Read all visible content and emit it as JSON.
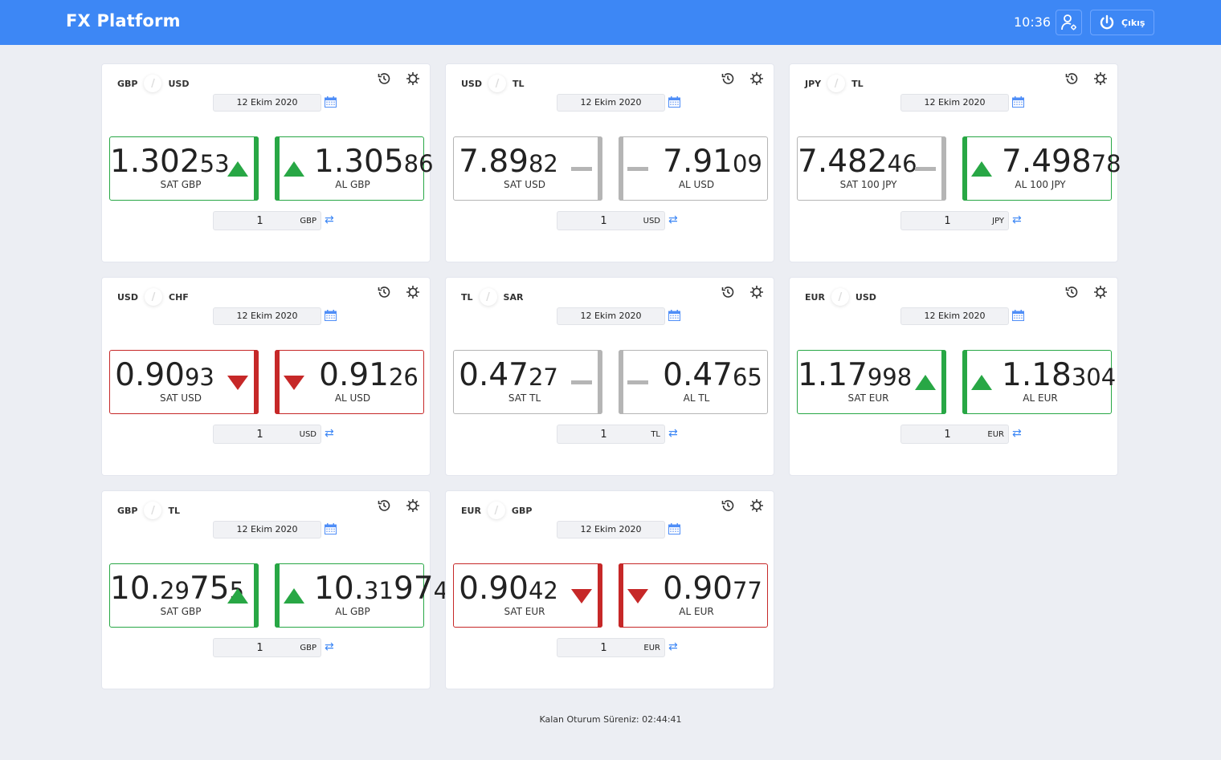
{
  "header": {
    "title": "FX Platform",
    "time": "10:36",
    "logout_label": "Çıkış"
  },
  "colors": {
    "brand": "#3d87f5",
    "up": "#28a745",
    "down": "#c62828",
    "neutral": "#b5b5b5"
  },
  "cards": [
    {
      "base": "GBP",
      "quote": "USD",
      "date": "12 Ekim 2020",
      "sell": {
        "parts": [
          [
            "1.302",
            "L"
          ],
          [
            "53",
            "S"
          ]
        ],
        "label": "SAT GBP",
        "trend": "up"
      },
      "buy": {
        "parts": [
          [
            "1.305",
            "L"
          ],
          [
            "86",
            "S"
          ]
        ],
        "label": "AL GBP",
        "trend": "up"
      },
      "amount": "1",
      "unit": "GBP"
    },
    {
      "base": "USD",
      "quote": "TL",
      "date": "12 Ekim 2020",
      "sell": {
        "parts": [
          [
            "7.89",
            "L"
          ],
          [
            "82",
            "S"
          ]
        ],
        "label": "SAT USD",
        "trend": "neutral"
      },
      "buy": {
        "parts": [
          [
            "7.91",
            "L"
          ],
          [
            "09",
            "S"
          ]
        ],
        "label": "AL USD",
        "trend": "neutral"
      },
      "amount": "1",
      "unit": "USD"
    },
    {
      "base": "JPY",
      "quote": "TL",
      "date": "12 Ekim 2020",
      "sell": {
        "parts": [
          [
            "7.482",
            "L"
          ],
          [
            "46",
            "S"
          ]
        ],
        "label": "SAT 100 JPY",
        "trend": "neutral"
      },
      "buy": {
        "parts": [
          [
            "7.498",
            "L"
          ],
          [
            "78",
            "S"
          ]
        ],
        "label": "AL 100 JPY",
        "trend": "up"
      },
      "amount": "1",
      "unit": "JPY"
    },
    {
      "base": "USD",
      "quote": "CHF",
      "date": "12 Ekim 2020",
      "sell": {
        "parts": [
          [
            "0.90",
            "L"
          ],
          [
            "93",
            "S"
          ]
        ],
        "label": "SAT USD",
        "trend": "down"
      },
      "buy": {
        "parts": [
          [
            "0.91",
            "L"
          ],
          [
            "26",
            "S"
          ]
        ],
        "label": "AL USD",
        "trend": "down"
      },
      "amount": "1",
      "unit": "USD"
    },
    {
      "base": "TL",
      "quote": "SAR",
      "date": "12 Ekim 2020",
      "sell": {
        "parts": [
          [
            "0.47",
            "L"
          ],
          [
            "27",
            "S"
          ]
        ],
        "label": "SAT TL",
        "trend": "neutral"
      },
      "buy": {
        "parts": [
          [
            "0.47",
            "L"
          ],
          [
            "65",
            "S"
          ]
        ],
        "label": "AL TL",
        "trend": "neutral"
      },
      "amount": "1",
      "unit": "TL"
    },
    {
      "base": "EUR",
      "quote": "USD",
      "date": "12 Ekim 2020",
      "sell": {
        "parts": [
          [
            "1.17",
            "L"
          ],
          [
            "998",
            "S"
          ]
        ],
        "label": "SAT EUR",
        "trend": "up"
      },
      "buy": {
        "parts": [
          [
            "1.18",
            "L"
          ],
          [
            "304",
            "S"
          ]
        ],
        "label": "AL EUR",
        "trend": "up"
      },
      "amount": "1",
      "unit": "EUR"
    },
    {
      "base": "GBP",
      "quote": "TL",
      "date": "12 Ekim 2020",
      "sell": {
        "parts": [
          [
            "10.",
            "L"
          ],
          [
            "29",
            "S"
          ],
          [
            "75",
            "L"
          ],
          [
            "5",
            "S"
          ]
        ],
        "label": "SAT GBP",
        "trend": "up"
      },
      "buy": {
        "parts": [
          [
            "10.",
            "L"
          ],
          [
            "31",
            "S"
          ],
          [
            "97",
            "L"
          ],
          [
            "4",
            "S"
          ]
        ],
        "label": "AL GBP",
        "trend": "up"
      },
      "amount": "1",
      "unit": "GBP"
    },
    {
      "base": "EUR",
      "quote": "GBP",
      "date": "12 Ekim 2020",
      "sell": {
        "parts": [
          [
            "0.90",
            "L"
          ],
          [
            "42",
            "S"
          ]
        ],
        "label": "SAT EUR",
        "trend": "down"
      },
      "buy": {
        "parts": [
          [
            "0.90",
            "L"
          ],
          [
            "77",
            "S"
          ]
        ],
        "label": "AL EUR",
        "trend": "down"
      },
      "amount": "1",
      "unit": "EUR"
    }
  ],
  "footer": {
    "session": "Kalan Oturum Süreniz: 02:44:41"
  }
}
